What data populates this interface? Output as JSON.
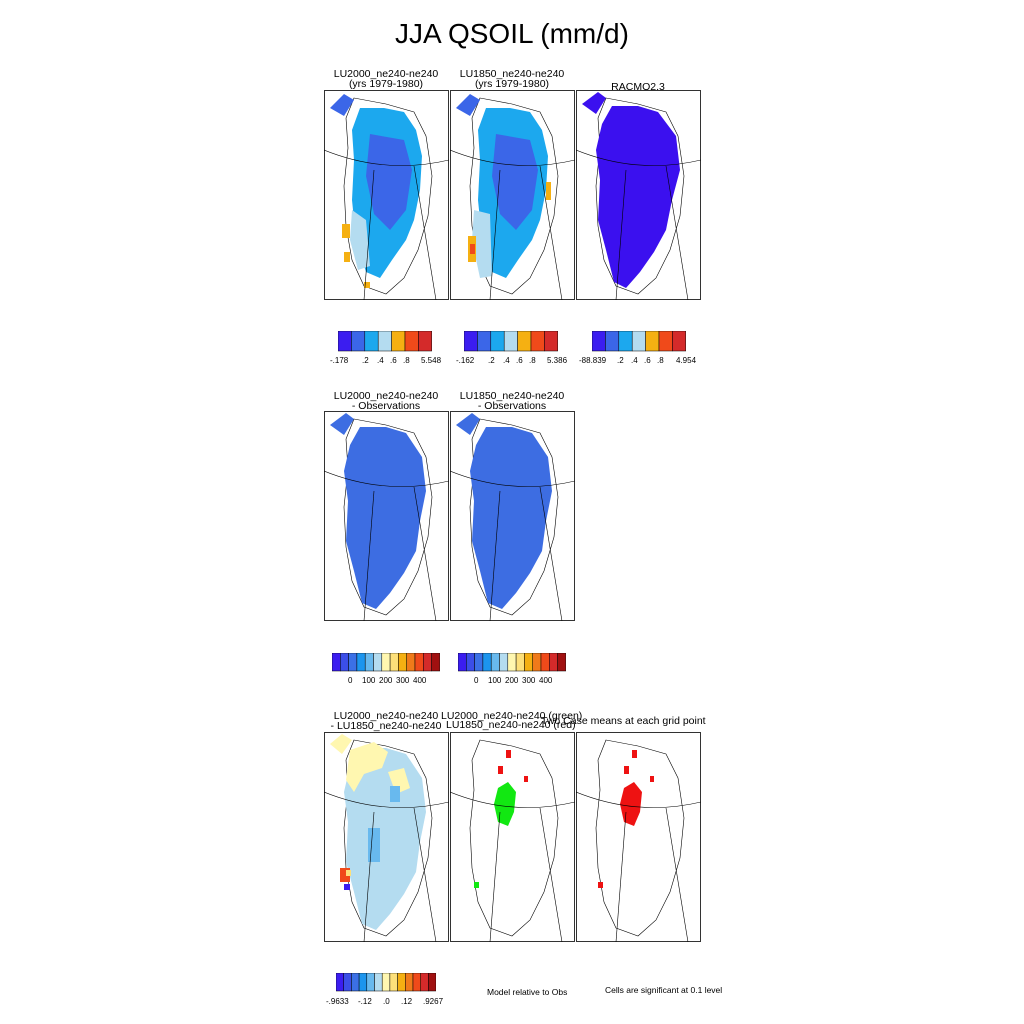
{
  "figure_title": "JJA QSOIL (mm/d)",
  "row1": {
    "panels": [
      {
        "line1": "LU2000_ne240-ne240",
        "line2": "(yrs 1979-1980)"
      },
      {
        "line1": "LU1850_ne240-ne240",
        "line2": "(yrs 1979-1980)"
      },
      {
        "line1": "RACMO2.3",
        "line2": ""
      }
    ],
    "colorbars": [
      {
        "labels": [
          "-.178",
          ".2",
          ".4",
          ".6",
          ".8",
          "5.548"
        ]
      },
      {
        "labels": [
          "-.162",
          ".2",
          ".4",
          ".6",
          ".8",
          "5.386"
        ]
      },
      {
        "labels": [
          "-88.839",
          ".2",
          ".4",
          ".6",
          ".8",
          "4.954"
        ]
      }
    ]
  },
  "row2": {
    "panels": [
      {
        "line1": "LU2000_ne240-ne240",
        "line2": "- Observations"
      },
      {
        "line1": "LU1850_ne240-ne240",
        "line2": "- Observations"
      }
    ],
    "colorbars": [
      {
        "labels": [
          "0",
          "100",
          "200",
          "300",
          "400"
        ]
      },
      {
        "labels": [
          "0",
          "100",
          "200",
          "300",
          "400"
        ]
      }
    ]
  },
  "row3": {
    "panels": [
      {
        "line1": "LU2000_ne240-ne240",
        "line2": "- LU1850_ne240-ne240"
      },
      {
        "line1": "LU2000_ne240-ne240 (green)",
        "line2": "LU1850_ne240-ne240 (red)"
      },
      {
        "line1": "Two Case means at each grid point",
        "line2": ""
      }
    ],
    "colorbar": {
      "labels": [
        "-.9633",
        "-.12",
        ".0",
        ".12",
        ".9267"
      ]
    },
    "note_model": "Model relative to Obs",
    "note_significance": "Cells are significant at 0.1 level"
  },
  "colors": {
    "fine_scale": [
      "#3b1df0",
      "#3b66e8",
      "#1ca8ee",
      "#b4dcf0",
      "#f5b012",
      "#f04a1a",
      "#d42a2a"
    ],
    "diff_scale": [
      "#3b1df0",
      "#3b4ee8",
      "#3b70e6",
      "#1c95ee",
      "#68b9ee",
      "#b4dcf0",
      "#fff7b0",
      "#fde07a",
      "#f5b012",
      "#f07a1a",
      "#f04a1a",
      "#d42a2a",
      "#a01010"
    ],
    "obs_fill": "#3d6de2",
    "racmo_fill": "#3b10ef",
    "sig_green": "#12e812",
    "sig_red": "#ee1212"
  }
}
